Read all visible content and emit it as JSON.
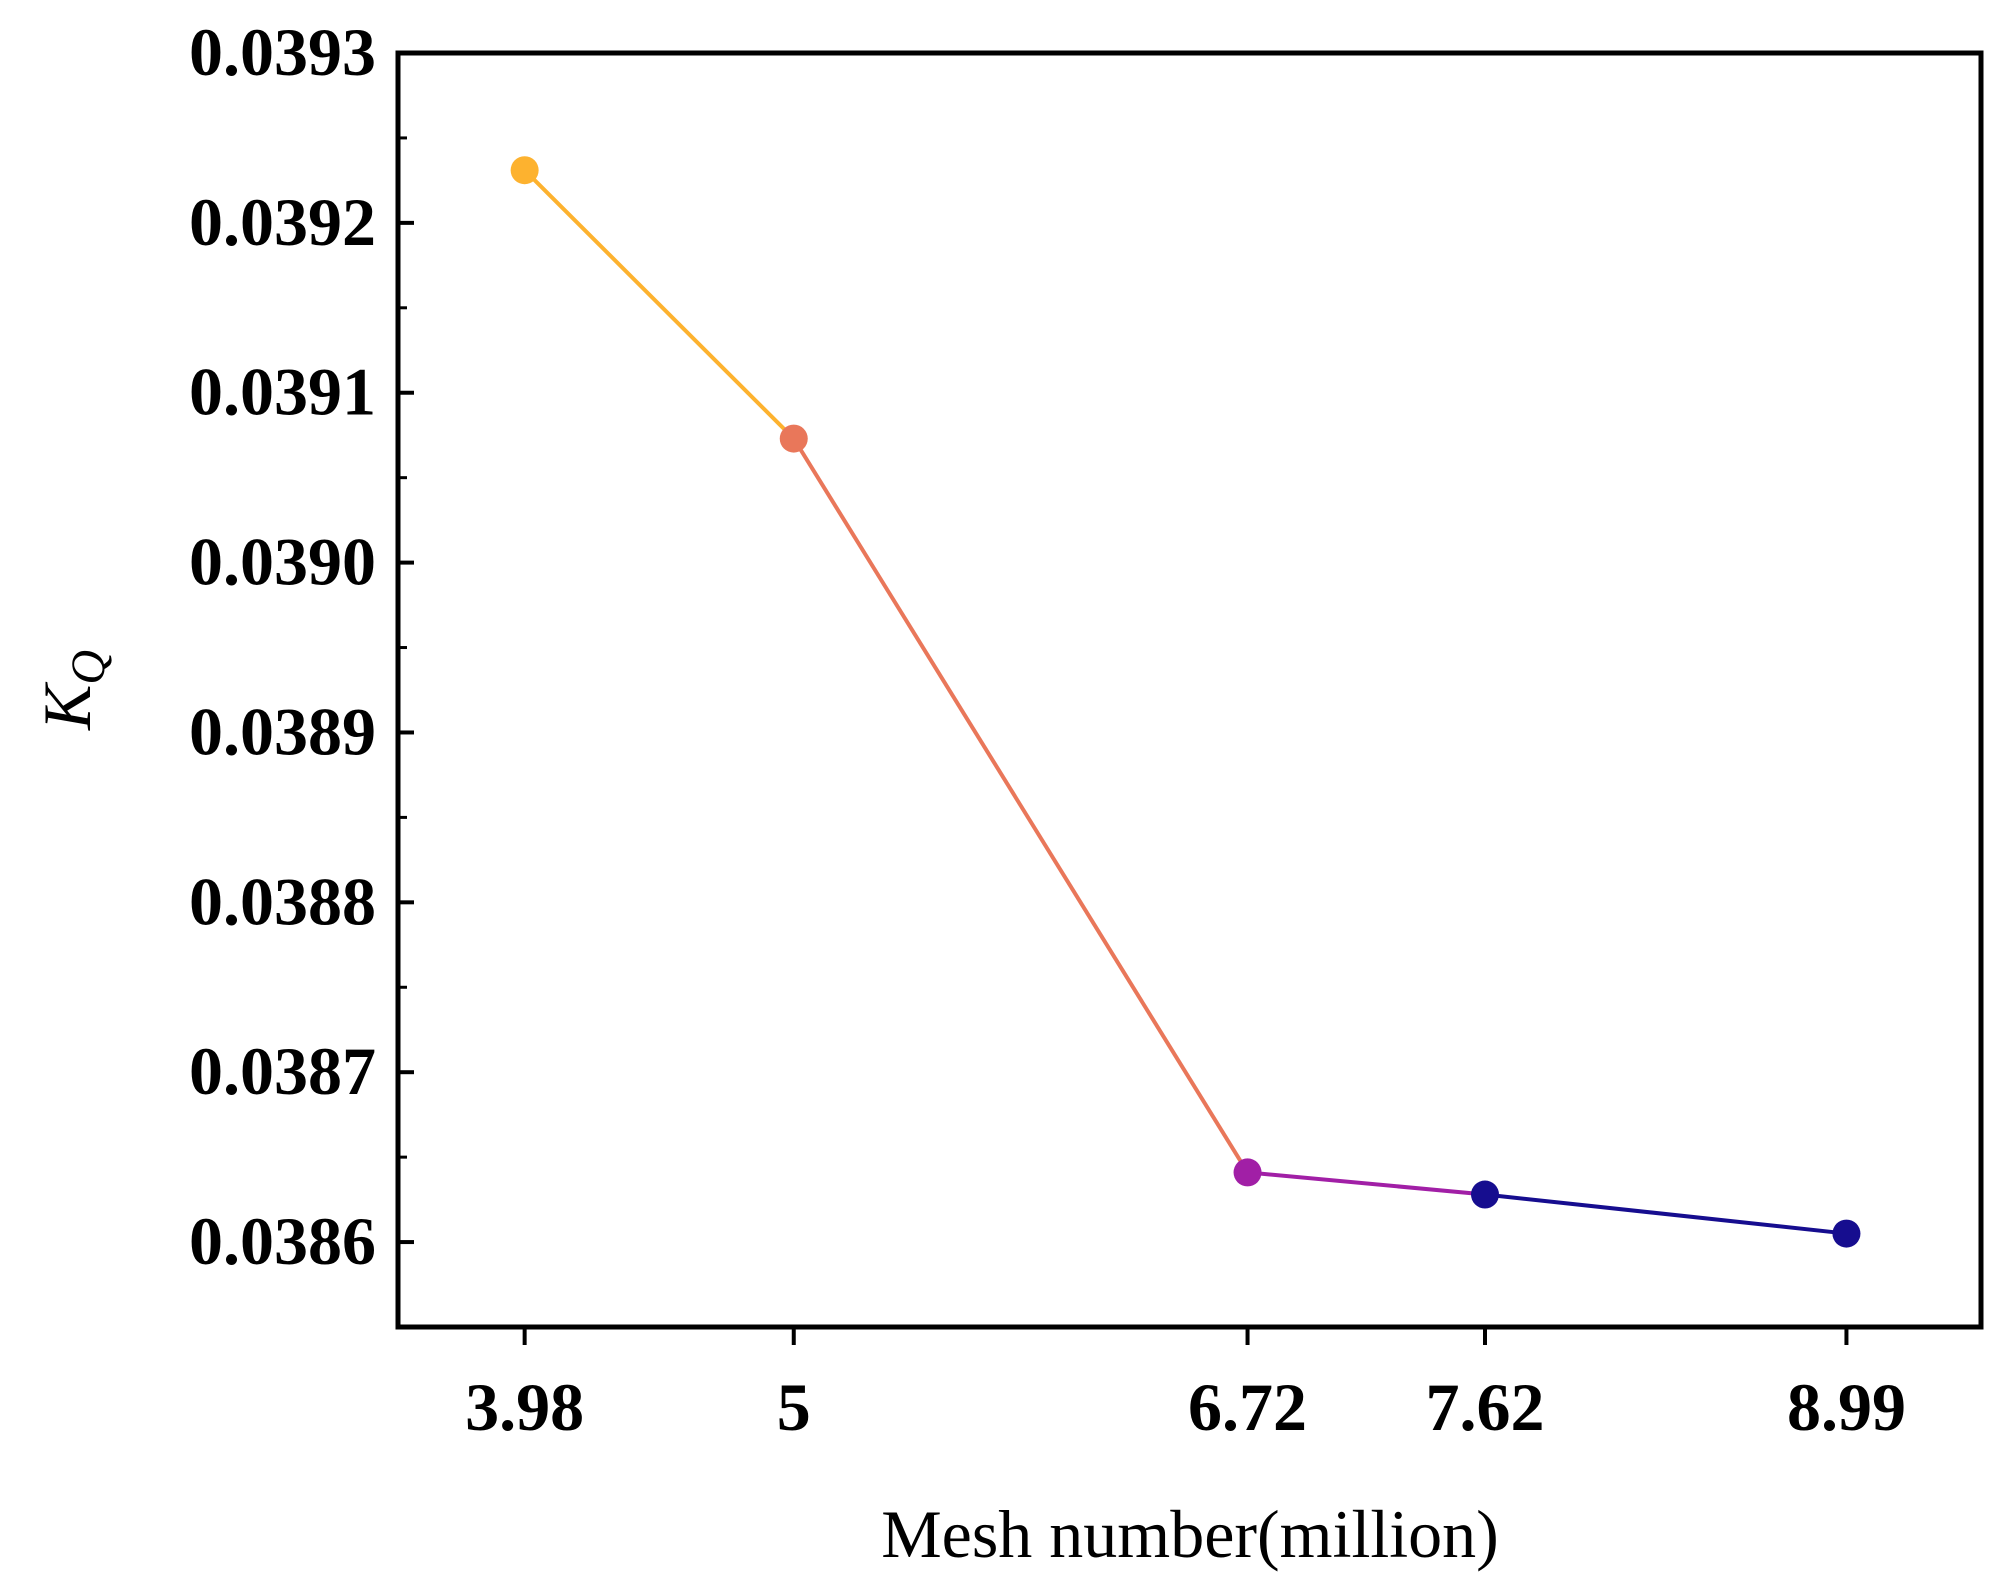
{
  "chart_data": {
    "type": "line",
    "title": "",
    "xlabel": "Mesh number(million)",
    "ylabel_main": "K",
    "ylabel_sub": "Q",
    "x": [
      3.98,
      5,
      6.72,
      7.62,
      8.99
    ],
    "x_tick_labels": [
      "3.98",
      "5",
      "6.72",
      "7.62",
      "8.99"
    ],
    "values": [
      0.039231,
      0.039073,
      0.038641,
      0.038628,
      0.038605
    ],
    "point_colors": [
      "#FDB22F",
      "#E9775A",
      "#A11FA6",
      "#160D8F",
      "#160D8F"
    ],
    "segment_colors": [
      "#FDB22F",
      "#E9775A",
      "#A11FA6",
      "#160D8F"
    ],
    "xlim": [
      3.5,
      9.5
    ],
    "ylim": [
      0.03855,
      0.0393
    ],
    "y_ticks": [
      0.0386,
      0.0387,
      0.0388,
      0.0389,
      0.039,
      0.0391,
      0.0392,
      0.0393
    ],
    "y_tick_labels": [
      "0.0386",
      "0.0387",
      "0.0388",
      "0.0389",
      "0.0390",
      "0.0391",
      "0.0392",
      "0.0393"
    ],
    "grid": false,
    "legend": "none"
  }
}
